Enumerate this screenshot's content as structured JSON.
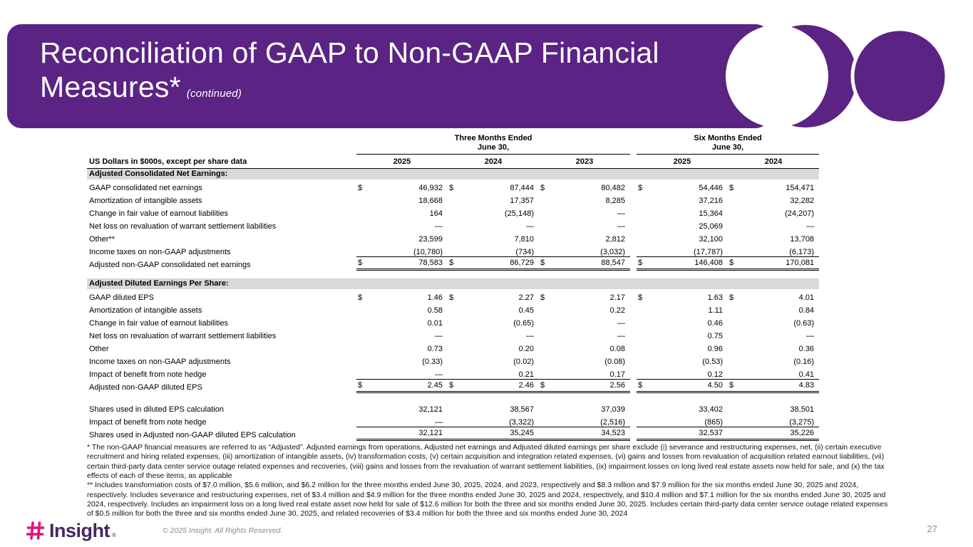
{
  "colors": {
    "brand_purple": "#5B2383",
    "brand_magenta": "#E0147F",
    "wordmark_purple": "#452764",
    "section_band_gray": "#D9D9D9",
    "footer_gray": "#8A8A8A"
  },
  "banner": {
    "title_line1": "Reconciliation of GAAP to Non-GAAP Financial",
    "title_line2": "Measures*",
    "continued": "(continued)"
  },
  "table": {
    "unit_label": "US Dollars in $000s, except per share data",
    "groups": [
      {
        "title": "Three Months Ended",
        "subtitle": "June 30,",
        "years": [
          "2025",
          "2024",
          "2023"
        ]
      },
      {
        "title": "Six Months Ended",
        "subtitle": "June 30,",
        "years": [
          "2025",
          "2024"
        ]
      }
    ],
    "sections": [
      {
        "header": "Adjusted Consolidated Net Earnings:",
        "rows": [
          {
            "label": "GAAP consolidated net earnings",
            "dollar": true,
            "values": [
              "46,932",
              "87,444",
              "80,482",
              "54,446",
              "154,471"
            ]
          },
          {
            "label": "Amortization of intangible assets",
            "values": [
              "18,668",
              "17,357",
              "8,285",
              "37,216",
              "32,282"
            ]
          },
          {
            "label": "Change in fair value of earnout liabilities",
            "values": [
              "164",
              "(25,148)",
              "—",
              "15,364",
              "(24,207)"
            ]
          },
          {
            "label": "Net loss on revaluation of warrant settlement liabilities",
            "values": [
              "—",
              "—",
              "—",
              "25,069",
              "—"
            ]
          },
          {
            "label": "Other**",
            "values": [
              "23,599",
              "7,810",
              "2,812",
              "32,100",
              "13,708"
            ]
          },
          {
            "label": "Income taxes on non-GAAP adjustments",
            "values": [
              "(10,780)",
              "(734)",
              "(3,032)",
              "(17,787)",
              "(6,173)"
            ],
            "rule_below": true
          },
          {
            "label": "Adjusted non-GAAP consolidated net earnings",
            "dollar": true,
            "values": [
              "78,583",
              "86,729",
              "88,547",
              "146,408",
              "170,081"
            ],
            "total": true
          }
        ]
      },
      {
        "header": "Adjusted Diluted Earnings Per Share:",
        "rows": [
          {
            "label": "GAAP diluted EPS",
            "dollar": true,
            "values": [
              "1.46",
              "2.27",
              "2.17",
              "1.63",
              "4.01"
            ]
          },
          {
            "label": "Amortization of intangible assets",
            "values": [
              "0.58",
              "0.45",
              "0.22",
              "1.11",
              "0.84"
            ]
          },
          {
            "label": "Change in fair value of earnout liabilities",
            "values": [
              "0.01",
              "(0.65)",
              "—",
              "0.46",
              "(0.63)"
            ]
          },
          {
            "label": "Net loss on revaluation of warrant settlement liabilities",
            "values": [
              "—",
              "—",
              "—",
              "0.75",
              "—"
            ]
          },
          {
            "label": "Other",
            "values": [
              "0.73",
              "0.20",
              "0.08",
              "0.96",
              "0.36"
            ]
          },
          {
            "label": "Income taxes on non-GAAP adjustments",
            "values": [
              "(0.33)",
              "(0.02)",
              "(0.08)",
              "(0.53)",
              "(0.16)"
            ]
          },
          {
            "label": "Impact of benefit from note hedge",
            "values": [
              "—",
              "0.21",
              "0.17",
              "0.12",
              "0.41"
            ],
            "rule_below": true
          },
          {
            "label": "Adjusted non-GAAP diluted EPS",
            "dollar": true,
            "values": [
              "2.45",
              "2.46",
              "2.56",
              "4.50",
              "4.83"
            ],
            "total": true
          }
        ]
      },
      {
        "header": null,
        "rows": [
          {
            "label": "Shares used in diluted EPS calculation",
            "values": [
              "32,121",
              "38,567",
              "37,039",
              "33,402",
              "38,501"
            ]
          },
          {
            "label": "Impact of benefit from note hedge",
            "values": [
              "—",
              "(3,322)",
              "(2,516)",
              "(865)",
              "(3,275)"
            ],
            "rule_below": true
          },
          {
            "label": "Shares used in Adjusted non-GAAP diluted EPS calculation",
            "values": [
              "32,121",
              "35,245",
              "34,523",
              "32,537",
              "35,226"
            ],
            "total": true
          }
        ]
      }
    ]
  },
  "footnotes": {
    "note1": "* The non-GAAP financial measures are referred to as “Adjusted”. Adjusted earnings from operations, Adjusted net earnings and Adjusted diluted earnings per share exclude (i) severance and restructuring expenses, net, (ii) certain executive recruitment and hiring related expenses, (iii) amortization of intangible assets, (iv) transformation costs, (v) certain acquisition and integration related expenses, (vi) gains and losses from revaluation of acquisition related earnout liabilities, (vii) certain third-party data center service outage related expenses and recoveries, (viii) gains and losses from the revaluation of warrant settlement liabilities, (ix) impairment losses on long lived real estate assets now held for sale, and (x) the tax effects of each of these items, as applicable",
    "note2": "** Includes transformation costs of $7.0 million, $5.6 million, and $6.2 million for the three months ended June 30, 2025, 2024, and 2023, respectively and $8.3 million and $7.9 million for the six months ended June 30, 2025 and 2024, respectively. Includes severance and restructuring expenses, net of $3.4 million and $4.9 million for the three months ended June 30, 2025 and 2024, respectively, and $10.4 million and $7.1 million for the six months ended June 30, 2025 and 2024, respectively. Includes an impairment loss on a long lived real estate asset now held for sale of $12.6 million for both the three and six months ended June 30, 2025. Includes certain third-party data center service outage related expenses of $0.5 million for both the three and six months ended June 30, 2025, and related recoveries of $3.4 million for both the three and six months ended June 30, 2024"
  },
  "footer": {
    "logo_text": "Insight",
    "reg": "®",
    "copyright": "© 2025 Insight. All Rights Reserved.",
    "page_number": "27"
  }
}
